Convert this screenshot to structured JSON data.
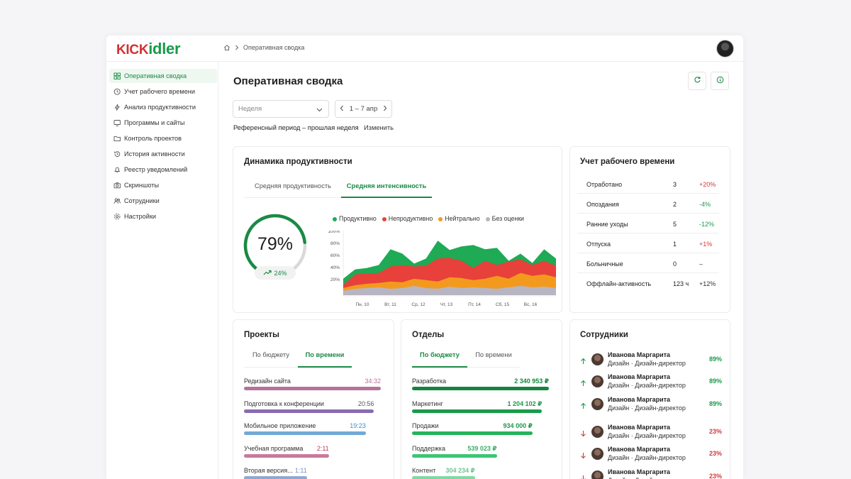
{
  "header": {
    "logo_left": "KICK",
    "logo_right": "idler",
    "breadcrumb": "Оперативная сводка"
  },
  "sidebar": {
    "items": [
      {
        "label": "Оперативная сводка",
        "icon": "grid-icon",
        "active": true
      },
      {
        "label": "Учет рабочего времени",
        "icon": "clock-icon"
      },
      {
        "label": "Анализ продуктивности",
        "icon": "bolt-icon"
      },
      {
        "label": "Программы и сайты",
        "icon": "monitor-icon"
      },
      {
        "label": "Контроль проектов",
        "icon": "folder-icon"
      },
      {
        "label": "История активности",
        "icon": "history-icon"
      },
      {
        "label": "Реестр уведомлений",
        "icon": "bell-icon"
      },
      {
        "label": "Скриншоты",
        "icon": "camera-icon"
      },
      {
        "label": "Сотрудники",
        "icon": "users-icon"
      },
      {
        "label": "Настройки",
        "icon": "gear-icon"
      }
    ]
  },
  "main": {
    "title": "Оперативная сводка",
    "period_select": "Неделя",
    "date_range": "1 – 7 апр",
    "ref_text": "Референсный период – прошлая неделя",
    "ref_change": "Изменить"
  },
  "productivity": {
    "title": "Динамика продуктивности",
    "tabs": [
      "Средняя продуктивность",
      "Средняя интенсивность"
    ],
    "active_tab": 1,
    "gauge_value": "79%",
    "gauge_fraction": 0.79,
    "trend": "24%",
    "legend": [
      {
        "label": "Продуктивно",
        "color": "#1faa55"
      },
      {
        "label": "Непродуктивно",
        "color": "#e8403a"
      },
      {
        "label": "Нейтрально",
        "color": "#f39a1e"
      },
      {
        "label": "Без оценки",
        "color": "#b7b5c2"
      }
    ]
  },
  "chart_data": {
    "type": "area",
    "categories": [
      "Пн, 10",
      "Вт, 11",
      "Ср, 12",
      "Чт, 13",
      "Пт, 14",
      "Сб, 15",
      "Вс, 16"
    ],
    "y_ticks": [
      "100%",
      "80%",
      "60%",
      "40%",
      "20%"
    ],
    "ylim": [
      10,
      100
    ],
    "x": [
      0,
      1,
      2,
      3,
      4,
      5,
      6,
      7,
      8,
      9,
      10,
      11,
      12,
      13,
      14,
      15,
      16,
      17,
      18
    ],
    "series": [
      {
        "name": "Без оценки",
        "color": "#b7b5c2",
        "values": [
          16,
          19,
          20,
          21,
          19,
          20,
          23,
          20,
          19,
          22,
          20,
          21,
          20,
          19,
          21,
          23,
          21,
          22,
          20
        ]
      },
      {
        "name": "Нейтрально",
        "color": "#f39a1e",
        "values": [
          20,
          24,
          26,
          27,
          29,
          28,
          33,
          31,
          29,
          35,
          34,
          31,
          33,
          37,
          33,
          41,
          37,
          39,
          35
        ]
      },
      {
        "name": "Непродуктивно",
        "color": "#e8403a",
        "values": [
          24,
          39,
          40,
          41,
          50,
          52,
          50,
          51,
          61,
          62,
          58,
          48,
          58,
          52,
          57,
          60,
          52,
          58,
          51
        ]
      },
      {
        "name": "Продуктивно",
        "color": "#1faa55",
        "values": [
          33,
          46,
          48,
          52,
          74,
          68,
          54,
          61,
          86,
          73,
          78,
          80,
          74,
          76,
          58,
          68,
          55,
          74,
          61
        ]
      }
    ]
  },
  "worktime": {
    "title": "Учет рабочего времени",
    "rows": [
      {
        "label": "Отработано",
        "value": "3",
        "delta": "+20%",
        "color": "#d33a3a"
      },
      {
        "label": "Опоздания",
        "value": "2",
        "delta": "-4%",
        "color": "#1a9a4a"
      },
      {
        "label": "Ранние уходы",
        "value": "5",
        "delta": "-12%",
        "color": "#1a9a4a"
      },
      {
        "label": "Отпуска",
        "value": "1",
        "delta": "+1%",
        "color": "#d33a3a"
      },
      {
        "label": "Больничные",
        "value": "0",
        "delta": "–",
        "color": "#333333"
      },
      {
        "label": "Оффлайн-активность",
        "value": "123 ч",
        "delta": "+12%",
        "color": "#333333"
      }
    ]
  },
  "projects": {
    "title": "Проекты",
    "tabs": [
      "По бюджету",
      "По времени"
    ],
    "active_tab": 1,
    "items": [
      {
        "label": "Редизайн сайта",
        "value": "34:32",
        "fraction": 1.0,
        "color": "#b5739a",
        "value_color": "#b5739a"
      },
      {
        "label": "Подготовка к конференции",
        "value": "20:56",
        "fraction": 0.95,
        "color": "#8a6bb0",
        "value_color": "#555555"
      },
      {
        "label": "Мобильное приложение",
        "value": "19:23",
        "fraction": 0.89,
        "color": "#72a9d6",
        "value_color": "#3a8ed0"
      },
      {
        "label": "Учебная программа",
        "value": "2:11",
        "fraction": 0.62,
        "color": "#c97a9a",
        "value_color": "#c0395a"
      },
      {
        "label": "Вторая версия...",
        "value": "1:11",
        "fraction": 0.46,
        "color": "#8fa8d4",
        "value_color": "#7a8fc0"
      }
    ]
  },
  "departments": {
    "title": "Отделы",
    "tabs": [
      "По бюджету",
      "По времени"
    ],
    "active_tab": 0,
    "items": [
      {
        "label": "Разработка",
        "value": "2 340 953 ₽",
        "fraction": 1.0,
        "color": "#15843f",
        "value_color": "#15843f"
      },
      {
        "label": "Маркетинг",
        "value": "1 204 102 ₽",
        "fraction": 0.95,
        "color": "#1a9a4a",
        "value_color": "#1a9a4a"
      },
      {
        "label": "Продажи",
        "value": "934 000 ₽",
        "fraction": 0.88,
        "color": "#25b35a",
        "value_color": "#1a9a4a"
      },
      {
        "label": "Поддержка",
        "value": "539 023 ₽",
        "fraction": 0.62,
        "color": "#3cc674",
        "value_color": "#3cae66"
      },
      {
        "label": "Контент",
        "value": "304 234 ₽",
        "fraction": 0.46,
        "color": "#7edaa1",
        "value_color": "#6cc58e"
      }
    ]
  },
  "employees": {
    "title": "Сотрудники",
    "items": [
      {
        "name": "Иванова Маргарита",
        "role": "Дизайн · Дизайн-директор",
        "pct": "89%",
        "trend": "up"
      },
      {
        "name": "Иванова Маргарита",
        "role": "Дизайн · Дизайн-директор",
        "pct": "89%",
        "trend": "up"
      },
      {
        "name": "Иванова Маргарита",
        "role": "Дизайн · Дизайн-директор",
        "pct": "89%",
        "trend": "up"
      },
      {
        "name": "Иванова Маргарита",
        "role": "Дизайн · Дизайн-директор",
        "pct": "23%",
        "trend": "down"
      },
      {
        "name": "Иванова Маргарита",
        "role": "Дизайн · Дизайн-директор",
        "pct": "23%",
        "trend": "down"
      },
      {
        "name": "Иванова Маргарита",
        "role": "Дизайн · Дизайн-директор",
        "pct": "23%",
        "trend": "down"
      }
    ]
  }
}
